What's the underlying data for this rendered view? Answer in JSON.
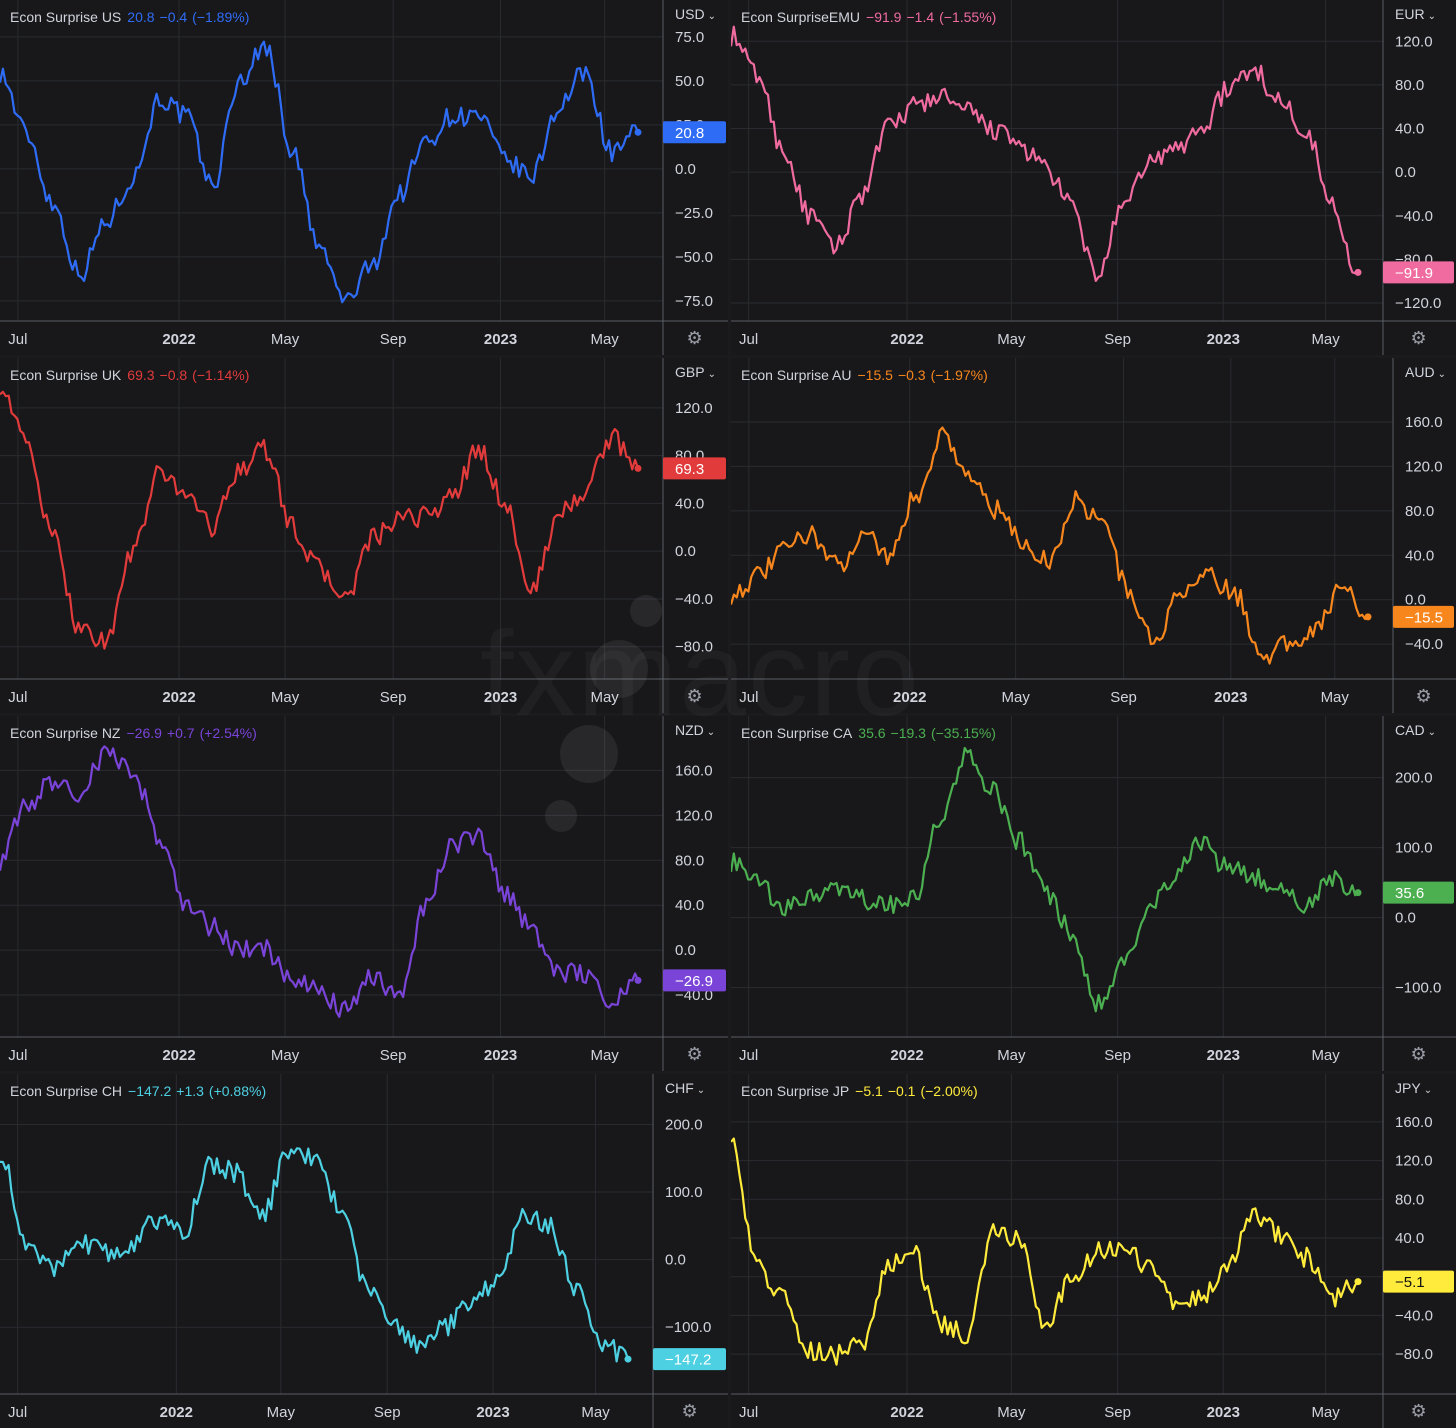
{
  "ui": {
    "gear_icon": "gear-icon"
  },
  "watermark": {
    "text": "fxmacro"
  },
  "panels": [
    {
      "id": "us",
      "title": "Econ Surprise US",
      "value": "20.8",
      "change": "−0.4",
      "pct": "(−1.89%)",
      "currency": "USD",
      "color": "#2f6cf6",
      "y_ticks": [
        "75.0",
        "50.0",
        "25.0",
        "0.0",
        "−25.0",
        "−50.0",
        "−75.0"
      ],
      "y_tick_vals": [
        75,
        50,
        25,
        0,
        -25,
        -50,
        -75
      ],
      "ylim": [
        -83,
        88
      ],
      "x_ticks": [
        "Jul",
        "2022",
        "May",
        "Sep",
        "2023",
        "May"
      ]
    },
    {
      "id": "emu",
      "title": "Econ SurpriseEMU",
      "value": "−91.9",
      "change": "−1.4",
      "pct": "(−1.55%)",
      "currency": "EUR",
      "color": "#f06ba0",
      "y_ticks": [
        "120.0",
        "80.0",
        "40.0",
        "0.0",
        "−40.0",
        "−80.0",
        "−120.0"
      ],
      "y_tick_vals": [
        120,
        80,
        40,
        0,
        -40,
        -80,
        -120
      ],
      "ylim": [
        -131,
        145
      ],
      "x_ticks": [
        "Jul",
        "2022",
        "May",
        "Sep",
        "2023",
        "May"
      ]
    },
    {
      "id": "uk",
      "title": "Econ Surprise UK",
      "value": "69.3",
      "change": "−0.8",
      "pct": "(−1.14%)",
      "currency": "GBP",
      "color": "#e13b3b",
      "y_ticks": [
        "120.0",
        "80.0",
        "40.0",
        "0.0",
        "−40.0",
        "−80.0"
      ],
      "y_tick_vals": [
        120,
        80,
        40,
        0,
        -40,
        -80
      ],
      "ylim": [
        -102,
        150
      ],
      "x_ticks": [
        "Jul",
        "2022",
        "May",
        "Sep",
        "2023",
        "May"
      ]
    },
    {
      "id": "au",
      "title": "Econ Surprise AU",
      "value": "−15.5",
      "change": "−0.3",
      "pct": "(−1.97%)",
      "currency": "AUD",
      "color": "#f7861c",
      "y_ticks": [
        "160.0",
        "120.0",
        "80.0",
        "40.0",
        "0.0",
        "−40.0"
      ],
      "y_tick_vals": [
        160,
        120,
        80,
        40,
        0,
        -40
      ],
      "ylim": [
        -66,
        205
      ],
      "x_ticks": [
        "Jul",
        "2022",
        "May",
        "Sep",
        "2023",
        "May"
      ]
    },
    {
      "id": "nz",
      "title": "Econ Surprise NZ",
      "value": "−26.9",
      "change": "+0.7",
      "pct": "(+2.54%)",
      "currency": "NZD",
      "color": "#7b44d8",
      "y_ticks": [
        "160.0",
        "120.0",
        "80.0",
        "40.0",
        "0.0",
        "−40.0"
      ],
      "y_tick_vals": [
        160,
        120,
        80,
        40,
        0,
        -40
      ],
      "ylim": [
        -72,
        196
      ],
      "x_ticks": [
        "Jul",
        "2022",
        "May",
        "Sep",
        "2023",
        "May"
      ]
    },
    {
      "id": "ca",
      "title": "Econ Surprise CA",
      "value": "35.6",
      "change": "−19.3",
      "pct": "(−35.15%)",
      "currency": "CAD",
      "color": "#4caf50",
      "y_ticks": [
        "200.0",
        "100.0",
        "0.0",
        "−100.0"
      ],
      "y_tick_vals": [
        200,
        100,
        0,
        -100
      ],
      "ylim": [
        -162,
        268
      ],
      "x_ticks": [
        "Jul",
        "2022",
        "May",
        "Sep",
        "2023",
        "May"
      ]
    },
    {
      "id": "ch",
      "title": "Econ Surprise CH",
      "value": "−147.2",
      "change": "+1.3",
      "pct": "(+0.88%)",
      "currency": "CHF",
      "color": "#4dd0e1",
      "y_ticks": [
        "200.0",
        "100.0",
        "0.0",
        "−100.0"
      ],
      "y_tick_vals": [
        200,
        100,
        0,
        -100
      ],
      "ylim": [
        -190,
        254
      ],
      "x_ticks": [
        "Jul",
        "2022",
        "May",
        "Sep",
        "2023",
        "May"
      ]
    },
    {
      "id": "jp",
      "title": "Econ Surprise JP",
      "value": "−5.1",
      "change": "−0.1",
      "pct": "(−2.00%)",
      "currency": "JPY",
      "color": "#ffeb3b",
      "y_ticks": [
        "160.0",
        "120.0",
        "80.0",
        "40.0",
        "0.0",
        "−40.0",
        "−80.0"
      ],
      "y_tick_vals": [
        160,
        120,
        80,
        40,
        0,
        -40,
        -80
      ],
      "ylim": [
        -115,
        195
      ],
      "x_ticks": [
        "Jul",
        "2022",
        "May",
        "Sep",
        "2023",
        "May"
      ]
    }
  ],
  "chart_data": [
    {
      "type": "line",
      "title": "Econ Surprise US",
      "ylim": [
        -83,
        88
      ],
      "x": [
        "2021-06",
        "2021-07",
        "2021-08",
        "2021-09",
        "2021-10",
        "2021-11",
        "2021-12",
        "2022-01",
        "2022-02",
        "2022-03",
        "2022-04",
        "2022-05",
        "2022-06",
        "2022-07",
        "2022-08",
        "2022-09",
        "2022-10",
        "2022-11",
        "2022-12",
        "2023-01",
        "2023-02",
        "2023-03",
        "2023-04",
        "2023-05",
        "2023-06"
      ],
      "series": [
        {
          "name": "Econ Surprise US",
          "values": [
            55,
            20,
            -20,
            -60,
            -30,
            -5,
            40,
            30,
            -10,
            50,
            70,
            10,
            -45,
            -75,
            -55,
            -15,
            15,
            30,
            30,
            5,
            -5,
            35,
            55,
            10,
            20.8
          ]
        }
      ]
    },
    {
      "type": "line",
      "title": "Econ SurpriseEMU",
      "ylim": [
        -131,
        145
      ],
      "x": [
        "2021-06",
        "2021-07",
        "2021-08",
        "2021-09",
        "2021-10",
        "2021-11",
        "2021-12",
        "2022-01",
        "2022-02",
        "2022-03",
        "2022-04",
        "2022-05",
        "2022-06",
        "2022-07",
        "2022-08",
        "2022-09",
        "2022-10",
        "2022-11",
        "2022-12",
        "2023-01",
        "2023-02",
        "2023-03",
        "2023-04",
        "2023-05",
        "2023-06"
      ],
      "series": [
        {
          "name": "Econ SurpriseEMU",
          "values": [
            125,
            90,
            20,
            -40,
            -70,
            -20,
            40,
            60,
            70,
            55,
            40,
            25,
            5,
            -30,
            -95,
            -35,
            10,
            20,
            40,
            75,
            95,
            65,
            40,
            -30,
            -91.9
          ]
        }
      ]
    },
    {
      "type": "line",
      "title": "Econ Surprise UK",
      "ylim": [
        -102,
        150
      ],
      "x": [
        "2021-06",
        "2021-07",
        "2021-08",
        "2021-09",
        "2021-10",
        "2021-11",
        "2021-12",
        "2022-01",
        "2022-02",
        "2022-03",
        "2022-04",
        "2022-05",
        "2022-06",
        "2022-07",
        "2022-08",
        "2022-09",
        "2022-10",
        "2022-11",
        "2022-12",
        "2023-01",
        "2023-02",
        "2023-03",
        "2023-04",
        "2023-05",
        "2023-06"
      ],
      "series": [
        {
          "name": "Econ Surprise UK",
          "values": [
            140,
            90,
            10,
            -65,
            -75,
            0,
            65,
            50,
            20,
            70,
            85,
            20,
            -15,
            -40,
            10,
            25,
            30,
            45,
            85,
            40,
            -35,
            30,
            50,
            95,
            69.3
          ]
        }
      ]
    },
    {
      "type": "line",
      "title": "Econ Surprise AU",
      "ylim": [
        -66,
        205
      ],
      "x": [
        "2021-06",
        "2021-07",
        "2021-08",
        "2021-09",
        "2021-10",
        "2021-11",
        "2021-12",
        "2022-01",
        "2022-02",
        "2022-03",
        "2022-04",
        "2022-05",
        "2022-06",
        "2022-07",
        "2022-08",
        "2022-09",
        "2022-10",
        "2022-11",
        "2022-12",
        "2023-01",
        "2023-02",
        "2023-03",
        "2023-04",
        "2023-05",
        "2023-06"
      ],
      "series": [
        {
          "name": "Econ Surprise AU",
          "values": [
            5,
            20,
            45,
            60,
            30,
            60,
            40,
            95,
            150,
            110,
            80,
            50,
            35,
            90,
            70,
            5,
            -40,
            10,
            20,
            5,
            -50,
            -40,
            -25,
            10,
            -15.5
          ]
        }
      ]
    },
    {
      "type": "line",
      "title": "Econ Surprise NZ",
      "ylim": [
        -72,
        196
      ],
      "x": [
        "2021-06",
        "2021-07",
        "2021-08",
        "2021-09",
        "2021-10",
        "2021-11",
        "2021-12",
        "2022-01",
        "2022-02",
        "2022-03",
        "2022-04",
        "2022-05",
        "2022-06",
        "2022-07",
        "2022-08",
        "2022-09",
        "2022-10",
        "2022-11",
        "2022-12",
        "2023-01",
        "2023-02",
        "2023-03",
        "2023-04",
        "2023-05",
        "2023-06"
      ],
      "series": [
        {
          "name": "Econ Surprise NZ",
          "values": [
            80,
            130,
            150,
            140,
            175,
            160,
            100,
            40,
            20,
            0,
            0,
            -30,
            -35,
            -55,
            -25,
            -40,
            40,
            95,
            100,
            50,
            20,
            -20,
            -20,
            -45,
            -26.9
          ]
        }
      ]
    },
    {
      "type": "line",
      "title": "Econ Surprise CA",
      "ylim": [
        -162,
        268
      ],
      "x": [
        "2021-06",
        "2021-07",
        "2021-08",
        "2021-09",
        "2021-10",
        "2021-11",
        "2021-12",
        "2022-01",
        "2022-02",
        "2022-03",
        "2022-04",
        "2022-05",
        "2022-06",
        "2022-07",
        "2022-08",
        "2022-09",
        "2022-10",
        "2022-11",
        "2022-12",
        "2023-01",
        "2023-02",
        "2023-03",
        "2023-04",
        "2023-05",
        "2023-06"
      ],
      "series": [
        {
          "name": "Econ Surprise CA",
          "values": [
            80,
            50,
            10,
            30,
            40,
            25,
            20,
            25,
            140,
            230,
            180,
            110,
            40,
            -20,
            -120,
            -70,
            10,
            60,
            110,
            70,
            60,
            40,
            20,
            55,
            35.6
          ]
        }
      ]
    },
    {
      "type": "line",
      "title": "Econ Surprise CH",
      "ylim": [
        -190,
        254
      ],
      "x": [
        "2021-06",
        "2021-07",
        "2021-08",
        "2021-09",
        "2021-10",
        "2021-11",
        "2021-12",
        "2022-01",
        "2022-02",
        "2022-03",
        "2022-04",
        "2022-05",
        "2022-06",
        "2022-07",
        "2022-08",
        "2022-09",
        "2022-10",
        "2022-11",
        "2022-12",
        "2023-01",
        "2023-02",
        "2023-03",
        "2023-04",
        "2023-05",
        "2023-06"
      ],
      "series": [
        {
          "name": "Econ Surprise CH",
          "values": [
            160,
            20,
            -10,
            30,
            10,
            20,
            60,
            40,
            140,
            130,
            60,
            160,
            150,
            80,
            -40,
            -90,
            -130,
            -100,
            -60,
            -30,
            70,
            50,
            -40,
            -120,
            -147.2
          ]
        }
      ]
    },
    {
      "type": "line",
      "title": "Econ Surprise JP",
      "ylim": [
        -115,
        195
      ],
      "x": [
        "2021-06",
        "2021-07",
        "2021-08",
        "2021-09",
        "2021-10",
        "2021-11",
        "2021-12",
        "2022-01",
        "2022-02",
        "2022-03",
        "2022-04",
        "2022-05",
        "2022-06",
        "2022-07",
        "2022-08",
        "2022-09",
        "2022-10",
        "2022-11",
        "2022-12",
        "2023-01",
        "2023-02",
        "2023-03",
        "2023-04",
        "2023-05",
        "2023-06"
      ],
      "series": [
        {
          "name": "Econ Surprise JP",
          "values": [
            150,
            10,
            -20,
            -75,
            -80,
            -70,
            10,
            25,
            -50,
            -60,
            45,
            40,
            -55,
            0,
            25,
            30,
            10,
            -25,
            -20,
            15,
            65,
            45,
            20,
            -25,
            -5.1
          ]
        }
      ]
    }
  ]
}
